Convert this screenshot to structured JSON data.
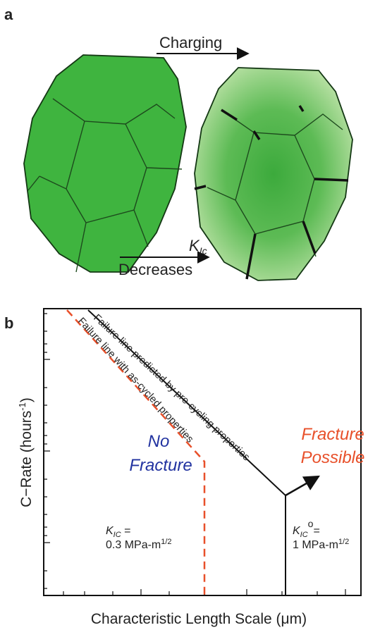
{
  "panel_a": {
    "label": "a",
    "top_arrow": "Charging",
    "bottom_arrow": {
      "symbol": "K",
      "subscript": "Ic",
      "text": "Decreases"
    }
  },
  "panel_b": {
    "label": "b",
    "y_axis_label": {
      "text": "C−Rate (hours",
      "superscript": "-1",
      "close": ")"
    },
    "x_axis_label": "Characteristic Length Scale (μm)",
    "lines": [
      {
        "label": "Failure line predicted by pre-cycling properties"
      },
      {
        "label": "Failure line with as-cycled properties"
      }
    ],
    "regions": [
      {
        "line1": "No",
        "line2": "Fracture"
      },
      {
        "line1": "Fracture",
        "line2": "Possible"
      }
    ],
    "annotations": [
      {
        "symbol": "K",
        "subscript": "IC",
        "tail": " =",
        "value": "0.3 MPa-m",
        "exponent": "1/2"
      },
      {
        "symbol": "K",
        "subscript": "IC",
        "superscript": "o",
        "tail": "=",
        "value": "1 MPa-m",
        "exponent": "1/2"
      }
    ]
  }
}
